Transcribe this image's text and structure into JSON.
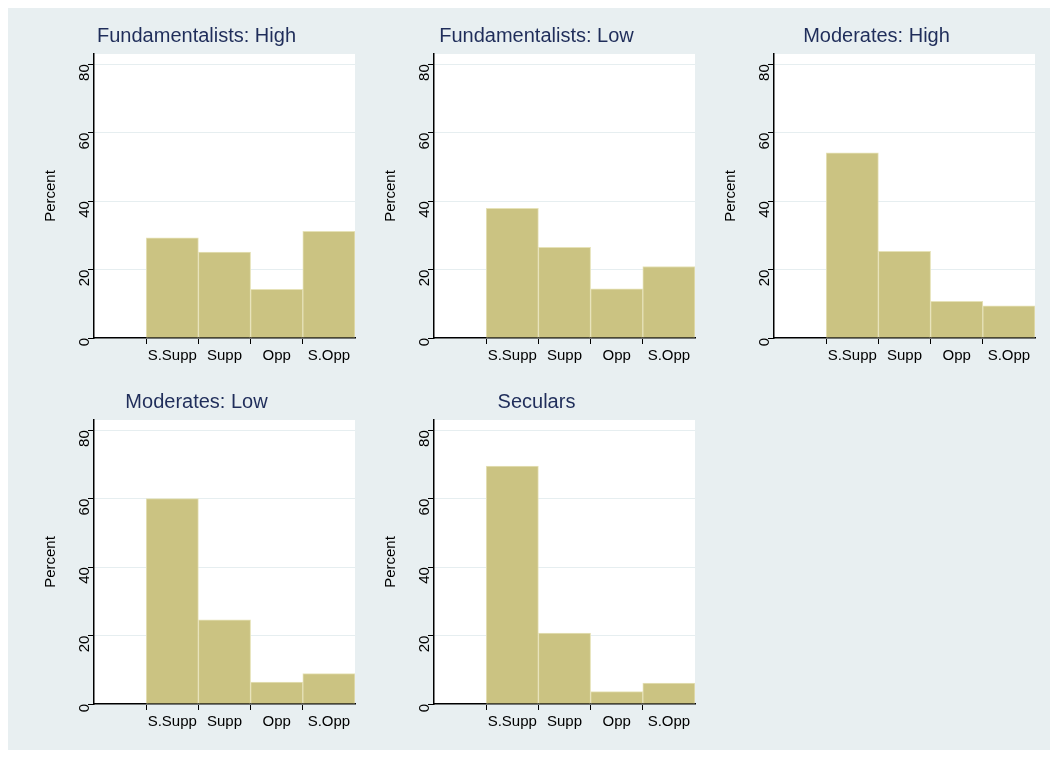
{
  "chart_data": [
    {
      "type": "bar",
      "title": "Fundamentalists: High",
      "ylabel": "Percent",
      "categories": [
        null,
        "S.Supp",
        "Supp",
        "Opp",
        "S.Opp"
      ],
      "values": [
        null,
        29.3,
        25.1,
        14.2,
        31.2
      ],
      "color": "#cbc382",
      "ylim": [
        0,
        83
      ],
      "yticks": [
        0,
        20,
        40,
        60,
        80
      ],
      "grid": "y",
      "legend": false
    },
    {
      "type": "bar",
      "title": "Fundamentalists: Low",
      "ylabel": "Percent",
      "categories": [
        null,
        "S.Supp",
        "Supp",
        "Opp",
        "S.Opp"
      ],
      "values": [
        null,
        37.9,
        26.5,
        14.4,
        20.9
      ],
      "color": "#cbc382",
      "ylim": [
        0,
        83
      ],
      "yticks": [
        0,
        20,
        40,
        60,
        80
      ],
      "grid": "y",
      "legend": false
    },
    {
      "type": "bar",
      "title": "Moderates: High",
      "ylabel": "Percent",
      "categories": [
        null,
        "S.Supp",
        "Supp",
        "Opp",
        "S.Opp"
      ],
      "values": [
        null,
        54.1,
        25.3,
        10.7,
        9.4
      ],
      "color": "#cbc382",
      "ylim": [
        0,
        83
      ],
      "yticks": [
        0,
        20,
        40,
        60,
        80
      ],
      "grid": "y",
      "legend": false
    },
    {
      "type": "bar",
      "title": "Moderates: Low",
      "ylabel": "Percent",
      "categories": [
        null,
        "S.Supp",
        "Supp",
        "Opp",
        "S.Opp"
      ],
      "values": [
        null,
        60.0,
        24.6,
        6.4,
        8.9
      ],
      "color": "#cbc382",
      "ylim": [
        0,
        83
      ],
      "yticks": [
        0,
        20,
        40,
        60,
        80
      ],
      "grid": "y",
      "legend": false
    },
    {
      "type": "bar",
      "title": "Seculars",
      "ylabel": "Percent",
      "categories": [
        null,
        "S.Supp",
        "Supp",
        "Opp",
        "S.Opp"
      ],
      "values": [
        null,
        69.5,
        20.7,
        3.6,
        6.1
      ],
      "color": "#cbc382",
      "ylim": [
        0,
        83
      ],
      "yticks": [
        0,
        20,
        40,
        60,
        80
      ],
      "grid": "y",
      "legend": false
    }
  ]
}
